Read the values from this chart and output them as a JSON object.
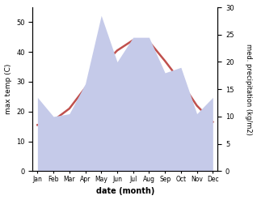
{
  "months": [
    "Jan",
    "Feb",
    "Mar",
    "Apr",
    "May",
    "Jun",
    "Jul",
    "Aug",
    "Sep",
    "Oct",
    "Nov",
    "Dec"
  ],
  "max_temp": [
    15.5,
    17.0,
    21.0,
    28.0,
    35.0,
    40.5,
    44.0,
    43.5,
    37.0,
    30.0,
    22.0,
    16.5
  ],
  "precipitation": [
    13.5,
    10.0,
    10.5,
    16.0,
    28.5,
    20.0,
    24.5,
    24.5,
    18.0,
    19.0,
    10.5,
    13.5
  ],
  "temp_color": "#c0504d",
  "precip_fill_color": "#c5cae9",
  "temp_ylim": [
    0,
    55
  ],
  "precip_ylim": [
    0,
    30
  ],
  "temp_yticks": [
    0,
    10,
    20,
    30,
    40,
    50
  ],
  "precip_yticks": [
    0,
    5,
    10,
    15,
    20,
    25,
    30
  ],
  "ylabel_left": "max temp (C)",
  "ylabel_right": "med. precipitation (kg/m2)",
  "xlabel": "date (month)",
  "background_color": "#ffffff"
}
